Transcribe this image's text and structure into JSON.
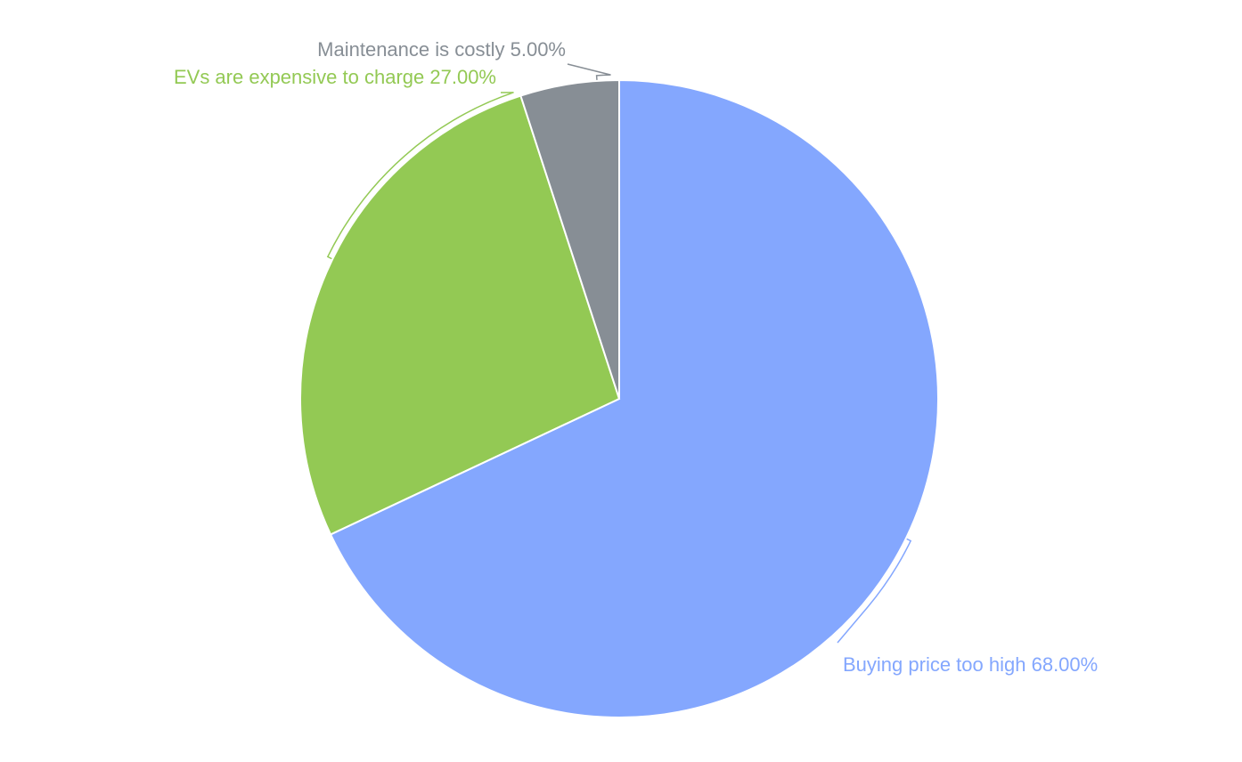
{
  "chart_data": {
    "type": "pie",
    "categories": [
      "Buying price too high",
      "EVs are expensive to charge",
      "Maintenance is costly"
    ],
    "values": [
      68,
      27,
      5
    ],
    "value_labels": [
      "68.00%",
      "27.00%",
      "5.00%"
    ],
    "colors": [
      "#84a7fe",
      "#93c954",
      "#878e95"
    ]
  }
}
